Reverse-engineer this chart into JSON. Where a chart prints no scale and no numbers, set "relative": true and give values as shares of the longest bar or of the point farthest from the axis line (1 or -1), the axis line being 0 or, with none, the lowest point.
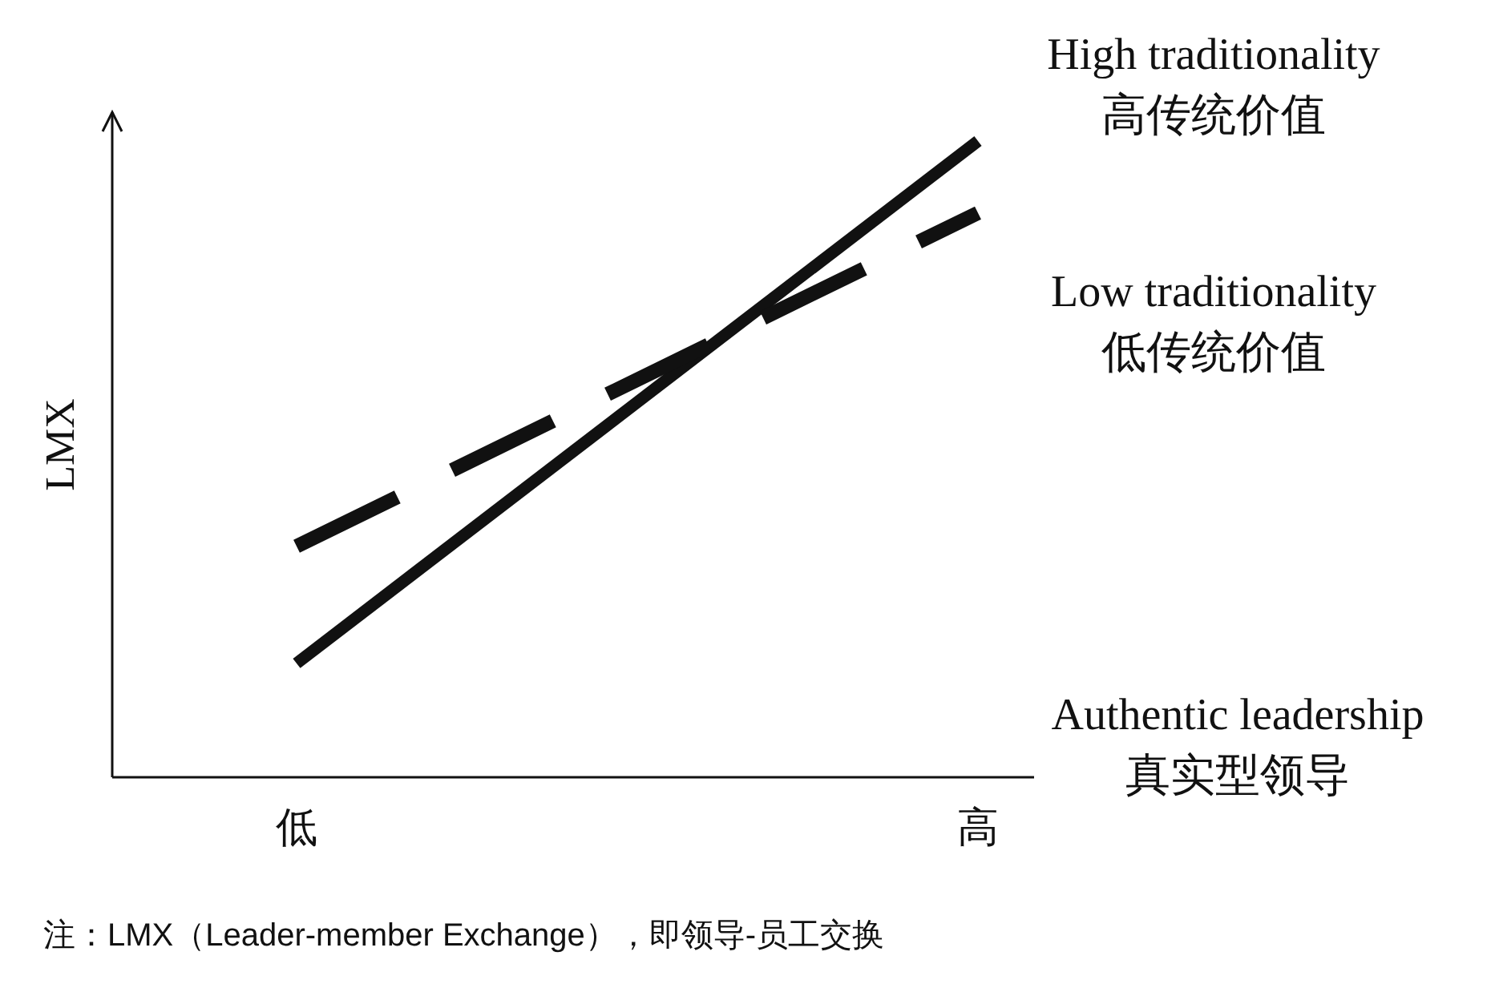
{
  "chart_data": {
    "type": "line",
    "relative": true,
    "categories": [
      "低",
      "高"
    ],
    "series": [
      {
        "name": "High traditionality\n高传统价值",
        "color": "#111111",
        "line_style": "solid",
        "values": [
          0.179,
          1
        ]
      },
      {
        "name": "Low traditionality\n低传统价值",
        "color": "#111111",
        "line_style": "dashed",
        "values": [
          0.363,
          0.887
        ]
      }
    ],
    "xlabel": "Authentic leadership\n真实型领导",
    "ylabel": "LMX",
    "annotations": [
      "注：LMX（Leader-member Exchange），即领导-员工交换"
    ],
    "grid": false,
    "legend": false,
    "marker": "none"
  }
}
